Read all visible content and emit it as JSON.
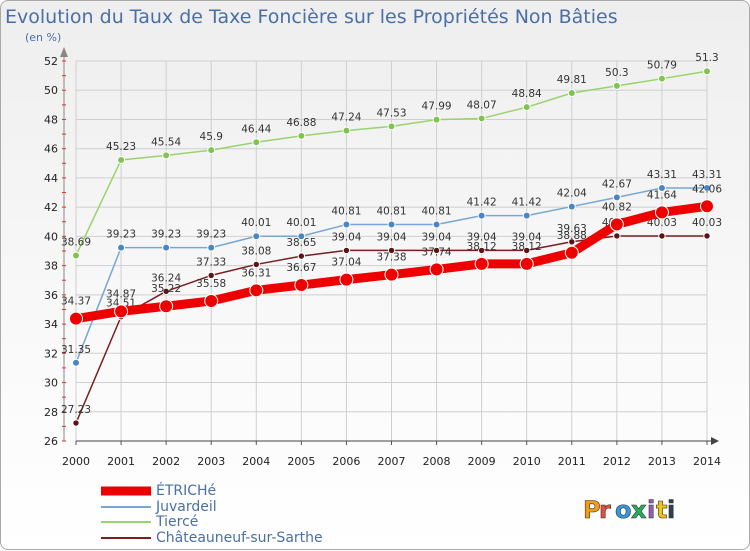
{
  "chart_data": {
    "type": "line",
    "title": "Evolution du Taux de Taxe Foncière sur les Propriétés Non Bâties",
    "subtitle": "(en %)",
    "xlabel": "",
    "ylabel": "",
    "categories": [
      "2000",
      "2001",
      "2002",
      "2003",
      "2004",
      "2005",
      "2006",
      "2007",
      "2008",
      "2009",
      "2010",
      "2011",
      "2012",
      "2013",
      "2014"
    ],
    "ylim": [
      26,
      52
    ],
    "yticks": [
      26,
      28,
      30,
      32,
      34,
      36,
      38,
      40,
      42,
      44,
      46,
      48,
      50,
      52
    ],
    "ytick_labels": [
      "26",
      "28",
      "30",
      "32",
      "34",
      "36",
      "38",
      "40",
      "42",
      "44",
      "46",
      "48",
      "50",
      "52"
    ],
    "grid": true,
    "series": [
      {
        "name": "Tiercé",
        "color": "#99d36b",
        "marker": "#7ec44f",
        "values": [
          38.69,
          45.23,
          45.54,
          45.9,
          46.44,
          46.88,
          47.24,
          47.53,
          47.99,
          48.07,
          48.84,
          49.81,
          50.3,
          50.79,
          51.3
        ],
        "labels": [
          "38.69",
          "45.23",
          "45.54",
          "45.9",
          "46.44",
          "46.88",
          "47.24",
          "47.53",
          "47.99",
          "48.07",
          "48.84",
          "49.81",
          "50.3",
          "50.79",
          "51.3"
        ]
      },
      {
        "name": "Juvardeil",
        "color": "#77a6d5",
        "marker": "#4b86c4",
        "values": [
          31.35,
          39.23,
          39.23,
          39.23,
          40.01,
          40.01,
          40.81,
          40.81,
          40.81,
          41.42,
          41.42,
          42.04,
          42.67,
          43.31,
          43.31
        ],
        "labels": [
          "31.35",
          "39.23",
          "39.23",
          "39.23",
          "40.01",
          "40.01",
          "40.81",
          "40.81",
          "40.81",
          "41.42",
          "41.42",
          "42.04",
          "42.67",
          "43.31",
          "43.31"
        ]
      },
      {
        "name": "Châteauneuf-sur-Sarthe",
        "color": "#7a1f1f",
        "marker": "#5a1414",
        "values": [
          27.23,
          34.51,
          36.24,
          37.33,
          38.08,
          38.65,
          39.04,
          39.04,
          39.04,
          39.04,
          39.04,
          39.63,
          40.03,
          40.03,
          40.03
        ],
        "labels": [
          "27.23",
          "34.51",
          "36.24",
          "37.33",
          "38.08",
          "38.65",
          "39.04",
          "39.04",
          "39.04",
          "39.04",
          "39.04",
          "39.63",
          "40.03",
          "40.03",
          "40.03"
        ]
      },
      {
        "name": "ÉTRICHé",
        "color": "#ee0000",
        "marker": "#ee0000",
        "values": [
          34.37,
          34.87,
          35.22,
          35.58,
          36.31,
          36.67,
          37.04,
          37.38,
          37.74,
          38.12,
          38.12,
          38.88,
          40.82,
          41.64,
          42.06
        ],
        "labels": [
          "34.37",
          "34.87",
          "35.22",
          "35.58",
          "36.31",
          "36.67",
          "37.04",
          "37.38",
          "37.74",
          "38.12",
          "38.12",
          "38.88",
          "40.82",
          "41.64",
          "42.06"
        ]
      }
    ],
    "legend": {
      "position": "bottom-left",
      "order": [
        "ÉTRICHé",
        "Juvardeil",
        "Tiercé",
        "Châteauneuf-sur-Sarthe"
      ]
    }
  },
  "branding": {
    "logo_text": "Proxiti",
    "logo_colors": [
      "#f39c12",
      "#e74c3c",
      "#3498db",
      "#27ae60",
      "#9b59b6",
      "#f1c40f",
      "#2c3e50"
    ]
  }
}
